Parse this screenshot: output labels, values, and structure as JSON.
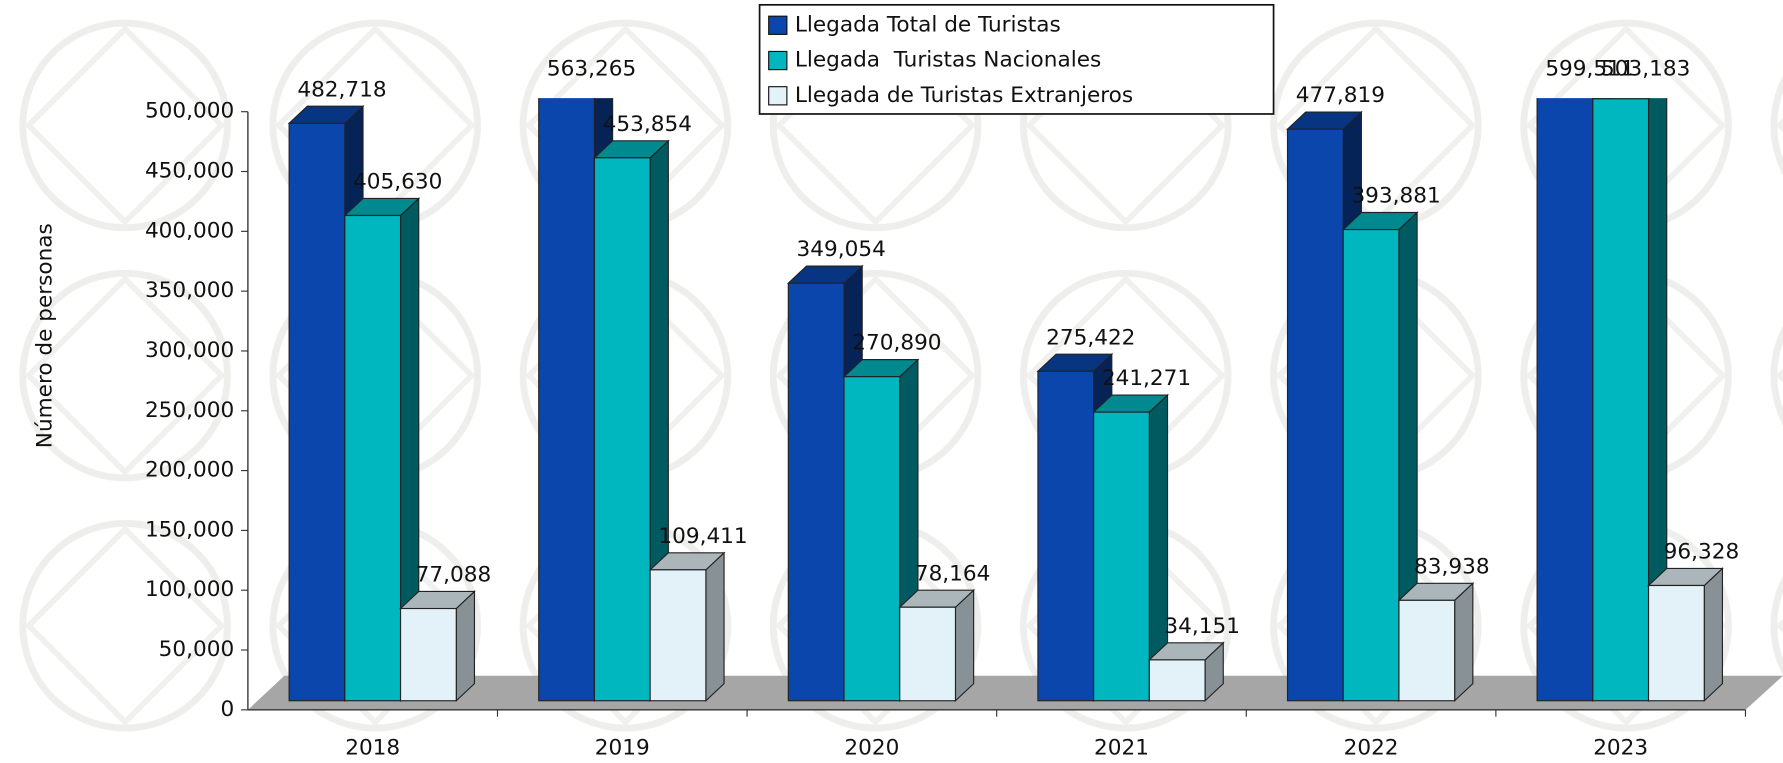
{
  "chart_data": {
    "type": "bar3d",
    "y_label": "Número de personas",
    "categories": [
      "2018",
      "2019",
      "2020",
      "2021",
      "2022",
      "2023"
    ],
    "series": [
      {
        "name": "Llegada Total de Turistas",
        "color": "#0b46ad",
        "values": [
          482718,
          563265,
          349054,
          275422,
          477819,
          599511
        ],
        "value_labels": [
          "482,718",
          "563,265",
          "349,054",
          "275,422",
          "477,819",
          "599,511"
        ]
      },
      {
        "name": "Llegada  Turistas Nacionales",
        "color": "#00b6bf",
        "values": [
          405630,
          453854,
          270890,
          241271,
          393881,
          503183
        ],
        "value_labels": [
          "405,630",
          "453,854",
          "270,890",
          "241,271",
          "393,881",
          "503,183"
        ]
      },
      {
        "name": "Llegada de Turistas Extranjeros",
        "color": "#e2f2f8",
        "values": [
          77088,
          109411,
          78164,
          34151,
          83938,
          96328
        ],
        "value_labels": [
          "77,088",
          "109,411",
          "78,164",
          "34,151",
          "83,938",
          "96,328"
        ]
      }
    ],
    "ylim": [
      0,
      500000
    ],
    "yticks": [
      0,
      {
        "value": 50000,
        "label": "50,000"
      },
      {
        "value": 100000,
        "label": "100,000"
      },
      {
        "value": 150000,
        "label": "150,000"
      },
      {
        "value": 200000,
        "label": "200,000"
      },
      {
        "value": 250000,
        "label": "250,000"
      },
      {
        "value": 300000,
        "label": "300,000"
      },
      {
        "value": 350000,
        "label": "350,000"
      },
      {
        "value": 400000,
        "label": "400,000"
      },
      {
        "value": 450000,
        "label": "450,000"
      },
      {
        "value": 500000,
        "label": "500,000"
      }
    ],
    "legend": "top"
  }
}
